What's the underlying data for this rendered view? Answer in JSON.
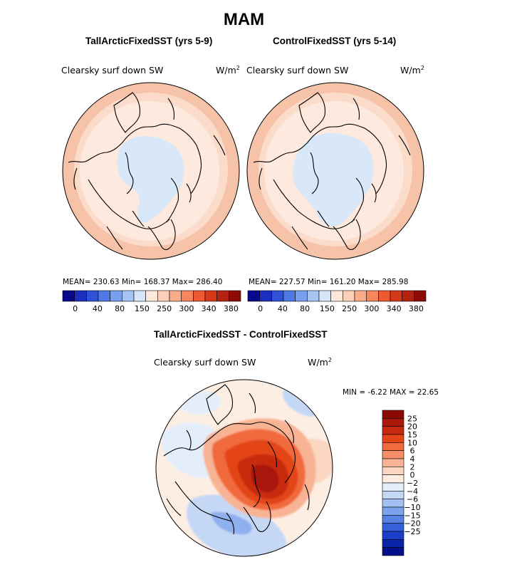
{
  "title": "MAM",
  "panel_left": {
    "title": "TallArcticFixedSST (yrs 5-9)",
    "variable": "Clearsky surf down SW",
    "units_base": "W/m",
    "units_exp": "2",
    "stats": "MEAN= 230.63   Min= 168.37   Max= 286.40"
  },
  "panel_right": {
    "title": "ControlFixedSST (yrs 5-14)",
    "variable": "Clearsky surf down SW",
    "units_base": "W/m",
    "units_exp": "2",
    "stats": "MEAN= 227.57   Min= 161.20   Max= 285.98"
  },
  "top_colorbar": {
    "colors": [
      "#08088c",
      "#1a2ec0",
      "#2f52d8",
      "#4f7ae6",
      "#78a0ee",
      "#a6c4f2",
      "#d6e6f8",
      "#fde6da",
      "#fccfb8",
      "#f9ac8a",
      "#f5865e",
      "#ed5a32",
      "#d6391a",
      "#b52210",
      "#8f0c06"
    ],
    "labels": [
      "0",
      "40",
      "80",
      "150",
      "250",
      "300",
      "340",
      "380"
    ]
  },
  "panel_diff": {
    "title": "TallArcticFixedSST - ControlFixedSST",
    "variable": "Clearsky surf down SW",
    "units_base": "W/m",
    "units_exp": "2",
    "minmax": "MIN =   -6.22 MAX =   22.65"
  },
  "diff_colorbar": {
    "colors_top_to_bottom": [
      "#8c0a04",
      "#a8190a",
      "#c82a10",
      "#e44418",
      "#f16b3e",
      "#f5906a",
      "#f8b394",
      "#fbd6c0",
      "#fdeee4",
      "#e4eefa",
      "#c4d8f6",
      "#a2c0f2",
      "#7ca2ec",
      "#5682e6",
      "#3460dc",
      "#1a3ec8",
      "#0a24a8",
      "#04108a"
    ],
    "labels_top_to_bottom": [
      "25",
      "20",
      "15",
      "10",
      "6",
      "4",
      "2",
      "0",
      "−2",
      "−4",
      "−6",
      "−10",
      "−15",
      "−20",
      "−25"
    ]
  }
}
